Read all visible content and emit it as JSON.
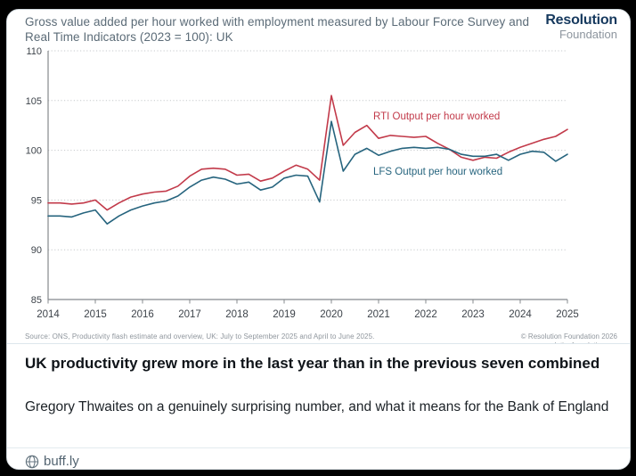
{
  "card": {
    "title_line1": "Gross value added per hour worked with employment measured by Labour Force Survey",
    "title_line2": "and Real Time Indicators (2023 = 100): UK",
    "logo_line1": "Resolution",
    "logo_line2": "Foundation",
    "source_note": "Source: ONS, Productivity flash estimate and overview, UK: July to September 2025 and April to June 2025.",
    "copyright": "© Resolution Foundation 2026",
    "copyright_url": "resolutionfoundation.org",
    "headline": "UK productivity grew more in the last year than in the previous seven combined",
    "description": "Gregory Thwaites on a genuinely surprising number, and what it means for the Bank of England",
    "link_domain": "buff.ly"
  },
  "chart_data": {
    "type": "line",
    "title": "Gross value added per hour worked with employment measured by Labour Force Survey and Real Time Indicators (2023 = 100): UK",
    "x_frequency": "quarterly",
    "x_start": "2014 Q1",
    "x_end": "2025 Q1",
    "x_years": [
      2014,
      2015,
      2016,
      2017,
      2018,
      2019,
      2020,
      2021,
      2022,
      2023,
      2024,
      2025
    ],
    "ylim": [
      85,
      110
    ],
    "ytick_step": 5,
    "grid": "dotted horizontal",
    "legend_position": "inline labels on chart",
    "axis_color": "#85898d",
    "grid_color": "#c6c9cc",
    "series": [
      {
        "name": "RTI Output per hour worked",
        "data_name": "rti-line",
        "color": "#c23a4a",
        "values": [
          94.7,
          94.7,
          94.6,
          94.7,
          95.0,
          94.0,
          94.7,
          95.3,
          95.6,
          95.8,
          95.9,
          96.4,
          97.4,
          98.1,
          98.2,
          98.1,
          97.5,
          97.6,
          96.9,
          97.2,
          97.9,
          98.5,
          98.1,
          97.0,
          105.5,
          100.5,
          101.8,
          102.5,
          101.2,
          101.5,
          101.4,
          101.3,
          101.4,
          100.7,
          100.1,
          99.3,
          99.0,
          99.3,
          99.2,
          99.8,
          100.3,
          100.7,
          101.1,
          101.4,
          102.1
        ]
      },
      {
        "name": "LFS Output per hour worked",
        "data_name": "lfs-line",
        "color": "#26647e",
        "values": [
          93.4,
          93.4,
          93.3,
          93.7,
          94.0,
          92.6,
          93.4,
          94.0,
          94.4,
          94.7,
          94.9,
          95.4,
          96.3,
          97.0,
          97.3,
          97.1,
          96.6,
          96.8,
          96.0,
          96.3,
          97.2,
          97.5,
          97.4,
          94.8,
          102.9,
          97.9,
          99.6,
          100.2,
          99.5,
          99.9,
          100.2,
          100.3,
          100.2,
          100.3,
          100.1,
          99.6,
          99.4,
          99.4,
          99.6,
          99.0,
          99.6,
          99.9,
          99.8,
          98.9,
          99.6
        ]
      }
    ]
  }
}
